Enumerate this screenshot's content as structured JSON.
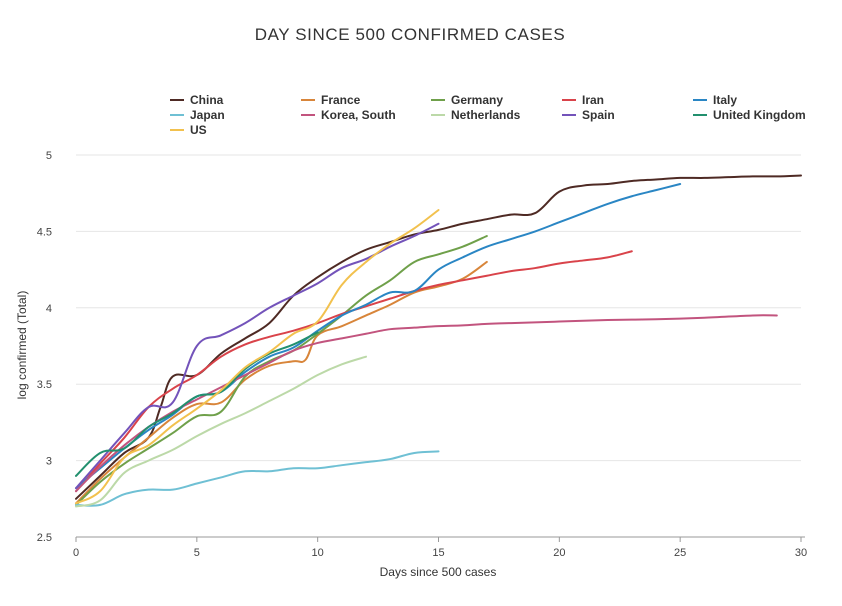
{
  "chart_data": {
    "type": "line",
    "title": "DAY SINCE 500 CONFIRMED CASES",
    "xlabel": "Days since 500 cases",
    "ylabel": "log confirmed (Total)",
    "xlim": [
      0,
      30
    ],
    "ylim": [
      2.5,
      5
    ],
    "x_ticks": [
      "0",
      "5",
      "10",
      "15",
      "20",
      "25",
      "30"
    ],
    "y_ticks": [
      "2.5",
      "3",
      "3.5",
      "4",
      "4.5",
      "5"
    ],
    "grid": "horizontal",
    "legend_position": "top",
    "series": [
      {
        "name": "China",
        "color": "#4e2a24",
        "values": [
          [
            0,
            2.75
          ],
          [
            1,
            2.9
          ],
          [
            2,
            3.05
          ],
          [
            3,
            3.15
          ],
          [
            3.5,
            3.35
          ],
          [
            4,
            3.55
          ],
          [
            5,
            3.56
          ],
          [
            6,
            3.7
          ],
          [
            7,
            3.8
          ],
          [
            8,
            3.9
          ],
          [
            9,
            4.08
          ],
          [
            10,
            4.2
          ],
          [
            11,
            4.3
          ],
          [
            12,
            4.38
          ],
          [
            13,
            4.43
          ],
          [
            14,
            4.48
          ],
          [
            15,
            4.51
          ],
          [
            16,
            4.55
          ],
          [
            17,
            4.58
          ],
          [
            18,
            4.61
          ],
          [
            19,
            4.62
          ],
          [
            20,
            4.76
          ],
          [
            21,
            4.8
          ],
          [
            22,
            4.81
          ],
          [
            23,
            4.83
          ],
          [
            24,
            4.84
          ],
          [
            25,
            4.85
          ],
          [
            26,
            4.85
          ],
          [
            27,
            4.855
          ],
          [
            28,
            4.86
          ],
          [
            29,
            4.86
          ],
          [
            30,
            4.866
          ]
        ]
      },
      {
        "name": "France",
        "color": "#d8853a",
        "values": [
          [
            0,
            2.72
          ],
          [
            1,
            2.88
          ],
          [
            2,
            3.02
          ],
          [
            3,
            3.15
          ],
          [
            4,
            3.28
          ],
          [
            5,
            3.37
          ],
          [
            6,
            3.38
          ],
          [
            7,
            3.53
          ],
          [
            8,
            3.62
          ],
          [
            9,
            3.65
          ],
          [
            9.5,
            3.66
          ],
          [
            10,
            3.82
          ],
          [
            11,
            3.88
          ],
          [
            12,
            3.95
          ],
          [
            13,
            4.02
          ],
          [
            14,
            4.1
          ],
          [
            15,
            4.14
          ],
          [
            16,
            4.19
          ],
          [
            17,
            4.3
          ]
        ]
      },
      {
        "name": "Germany",
        "color": "#6fa04a",
        "values": [
          [
            0,
            2.71
          ],
          [
            1,
            2.86
          ],
          [
            2,
            2.98
          ],
          [
            3,
            3.08
          ],
          [
            4,
            3.18
          ],
          [
            5,
            3.29
          ],
          [
            6,
            3.32
          ],
          [
            7,
            3.55
          ],
          [
            8,
            3.65
          ],
          [
            9,
            3.72
          ],
          [
            10,
            3.83
          ],
          [
            11,
            3.95
          ],
          [
            12,
            4.08
          ],
          [
            13,
            4.18
          ],
          [
            14,
            4.3
          ],
          [
            15,
            4.35
          ],
          [
            16,
            4.4
          ],
          [
            17,
            4.47
          ]
        ]
      },
      {
        "name": "Iran",
        "color": "#d9434a",
        "values": [
          [
            0,
            2.8
          ],
          [
            1,
            2.98
          ],
          [
            2,
            3.15
          ],
          [
            3,
            3.35
          ],
          [
            4,
            3.47
          ],
          [
            5,
            3.56
          ],
          [
            6,
            3.68
          ],
          [
            7,
            3.76
          ],
          [
            8,
            3.81
          ],
          [
            9,
            3.85
          ],
          [
            10,
            3.9
          ],
          [
            11,
            3.96
          ],
          [
            12,
            4.01
          ],
          [
            13,
            4.06
          ],
          [
            14,
            4.11
          ],
          [
            15,
            4.15
          ],
          [
            16,
            4.18
          ],
          [
            17,
            4.21
          ],
          [
            18,
            4.24
          ],
          [
            19,
            4.26
          ],
          [
            20,
            4.29
          ],
          [
            21,
            4.31
          ],
          [
            22,
            4.33
          ],
          [
            23,
            4.37
          ]
        ]
      },
      {
        "name": "Italy",
        "color": "#2a86c4",
        "values": [
          [
            0,
            2.82
          ],
          [
            1,
            2.95
          ],
          [
            2,
            3.08
          ],
          [
            3,
            3.2
          ],
          [
            4,
            3.3
          ],
          [
            5,
            3.42
          ],
          [
            6,
            3.45
          ],
          [
            7,
            3.58
          ],
          [
            8,
            3.68
          ],
          [
            9,
            3.74
          ],
          [
            10,
            3.85
          ],
          [
            11,
            3.95
          ],
          [
            12,
            4.02
          ],
          [
            13,
            4.1
          ],
          [
            14,
            4.11
          ],
          [
            15,
            4.25
          ],
          [
            16,
            4.33
          ],
          [
            17,
            4.4
          ],
          [
            18,
            4.45
          ],
          [
            19,
            4.5
          ],
          [
            20,
            4.56
          ],
          [
            21,
            4.62
          ],
          [
            22,
            4.68
          ],
          [
            23,
            4.73
          ],
          [
            24,
            4.77
          ],
          [
            25,
            4.81
          ]
        ]
      },
      {
        "name": "Japan",
        "color": "#6fc0d4",
        "values": [
          [
            0,
            2.71
          ],
          [
            1,
            2.71
          ],
          [
            2,
            2.78
          ],
          [
            3,
            2.81
          ],
          [
            4,
            2.81
          ],
          [
            5,
            2.85
          ],
          [
            6,
            2.89
          ],
          [
            7,
            2.93
          ],
          [
            8,
            2.93
          ],
          [
            9,
            2.95
          ],
          [
            10,
            2.95
          ],
          [
            11,
            2.97
          ],
          [
            12,
            2.99
          ],
          [
            13,
            3.01
          ],
          [
            14,
            3.05
          ],
          [
            15,
            3.06
          ]
        ]
      },
      {
        "name": "Korea, South",
        "color": "#c2547e",
        "values": [
          [
            0,
            2.8
          ],
          [
            1,
            2.96
          ],
          [
            2,
            3.1
          ],
          [
            3,
            3.22
          ],
          [
            4,
            3.32
          ],
          [
            5,
            3.4
          ],
          [
            6,
            3.48
          ],
          [
            7,
            3.56
          ],
          [
            8,
            3.64
          ],
          [
            9,
            3.72
          ],
          [
            10,
            3.77
          ],
          [
            11,
            3.8
          ],
          [
            12,
            3.83
          ],
          [
            13,
            3.86
          ],
          [
            14,
            3.87
          ],
          [
            15,
            3.88
          ],
          [
            16,
            3.885
          ],
          [
            17,
            3.895
          ],
          [
            18,
            3.9
          ],
          [
            20,
            3.91
          ],
          [
            22,
            3.92
          ],
          [
            24,
            3.925
          ],
          [
            26,
            3.935
          ],
          [
            28,
            3.95
          ],
          [
            29,
            3.95
          ]
        ]
      },
      {
        "name": "Netherlands",
        "color": "#bcd9a8",
        "values": [
          [
            0,
            2.7
          ],
          [
            1,
            2.74
          ],
          [
            2,
            2.92
          ],
          [
            3,
            3.0
          ],
          [
            4,
            3.07
          ],
          [
            5,
            3.16
          ],
          [
            6,
            3.24
          ],
          [
            7,
            3.31
          ],
          [
            8,
            3.39
          ],
          [
            9,
            3.47
          ],
          [
            10,
            3.56
          ],
          [
            11,
            3.63
          ],
          [
            12,
            3.68
          ]
        ]
      },
      {
        "name": "Spain",
        "color": "#7353ba",
        "values": [
          [
            0,
            2.82
          ],
          [
            1,
            3.0
          ],
          [
            2,
            3.18
          ],
          [
            3,
            3.35
          ],
          [
            4,
            3.38
          ],
          [
            5,
            3.75
          ],
          [
            6,
            3.82
          ],
          [
            7,
            3.9
          ],
          [
            8,
            4.0
          ],
          [
            9,
            4.08
          ],
          [
            10,
            4.16
          ],
          [
            11,
            4.26
          ],
          [
            12,
            4.32
          ],
          [
            13,
            4.4
          ],
          [
            14,
            4.47
          ],
          [
            15,
            4.55
          ]
        ]
      },
      {
        "name": "United Kingdom",
        "color": "#22906e",
        "values": [
          [
            0,
            2.9
          ],
          [
            1,
            3.05
          ],
          [
            2,
            3.08
          ],
          [
            3,
            3.22
          ],
          [
            4,
            3.31
          ],
          [
            5,
            3.42
          ],
          [
            6,
            3.45
          ],
          [
            7,
            3.6
          ],
          [
            8,
            3.7
          ],
          [
            9,
            3.76
          ],
          [
            10,
            3.84
          ]
        ]
      },
      {
        "name": "US",
        "color": "#f2c14e",
        "values": [
          [
            0,
            2.72
          ],
          [
            1,
            2.8
          ],
          [
            2,
            3.02
          ],
          [
            3,
            3.1
          ],
          [
            4,
            3.23
          ],
          [
            5,
            3.34
          ],
          [
            6,
            3.46
          ],
          [
            7,
            3.61
          ],
          [
            8,
            3.71
          ],
          [
            9,
            3.83
          ],
          [
            10,
            3.91
          ],
          [
            11,
            4.15
          ],
          [
            12,
            4.3
          ],
          [
            13,
            4.42
          ],
          [
            14,
            4.52
          ],
          [
            15,
            4.64
          ]
        ]
      }
    ]
  }
}
